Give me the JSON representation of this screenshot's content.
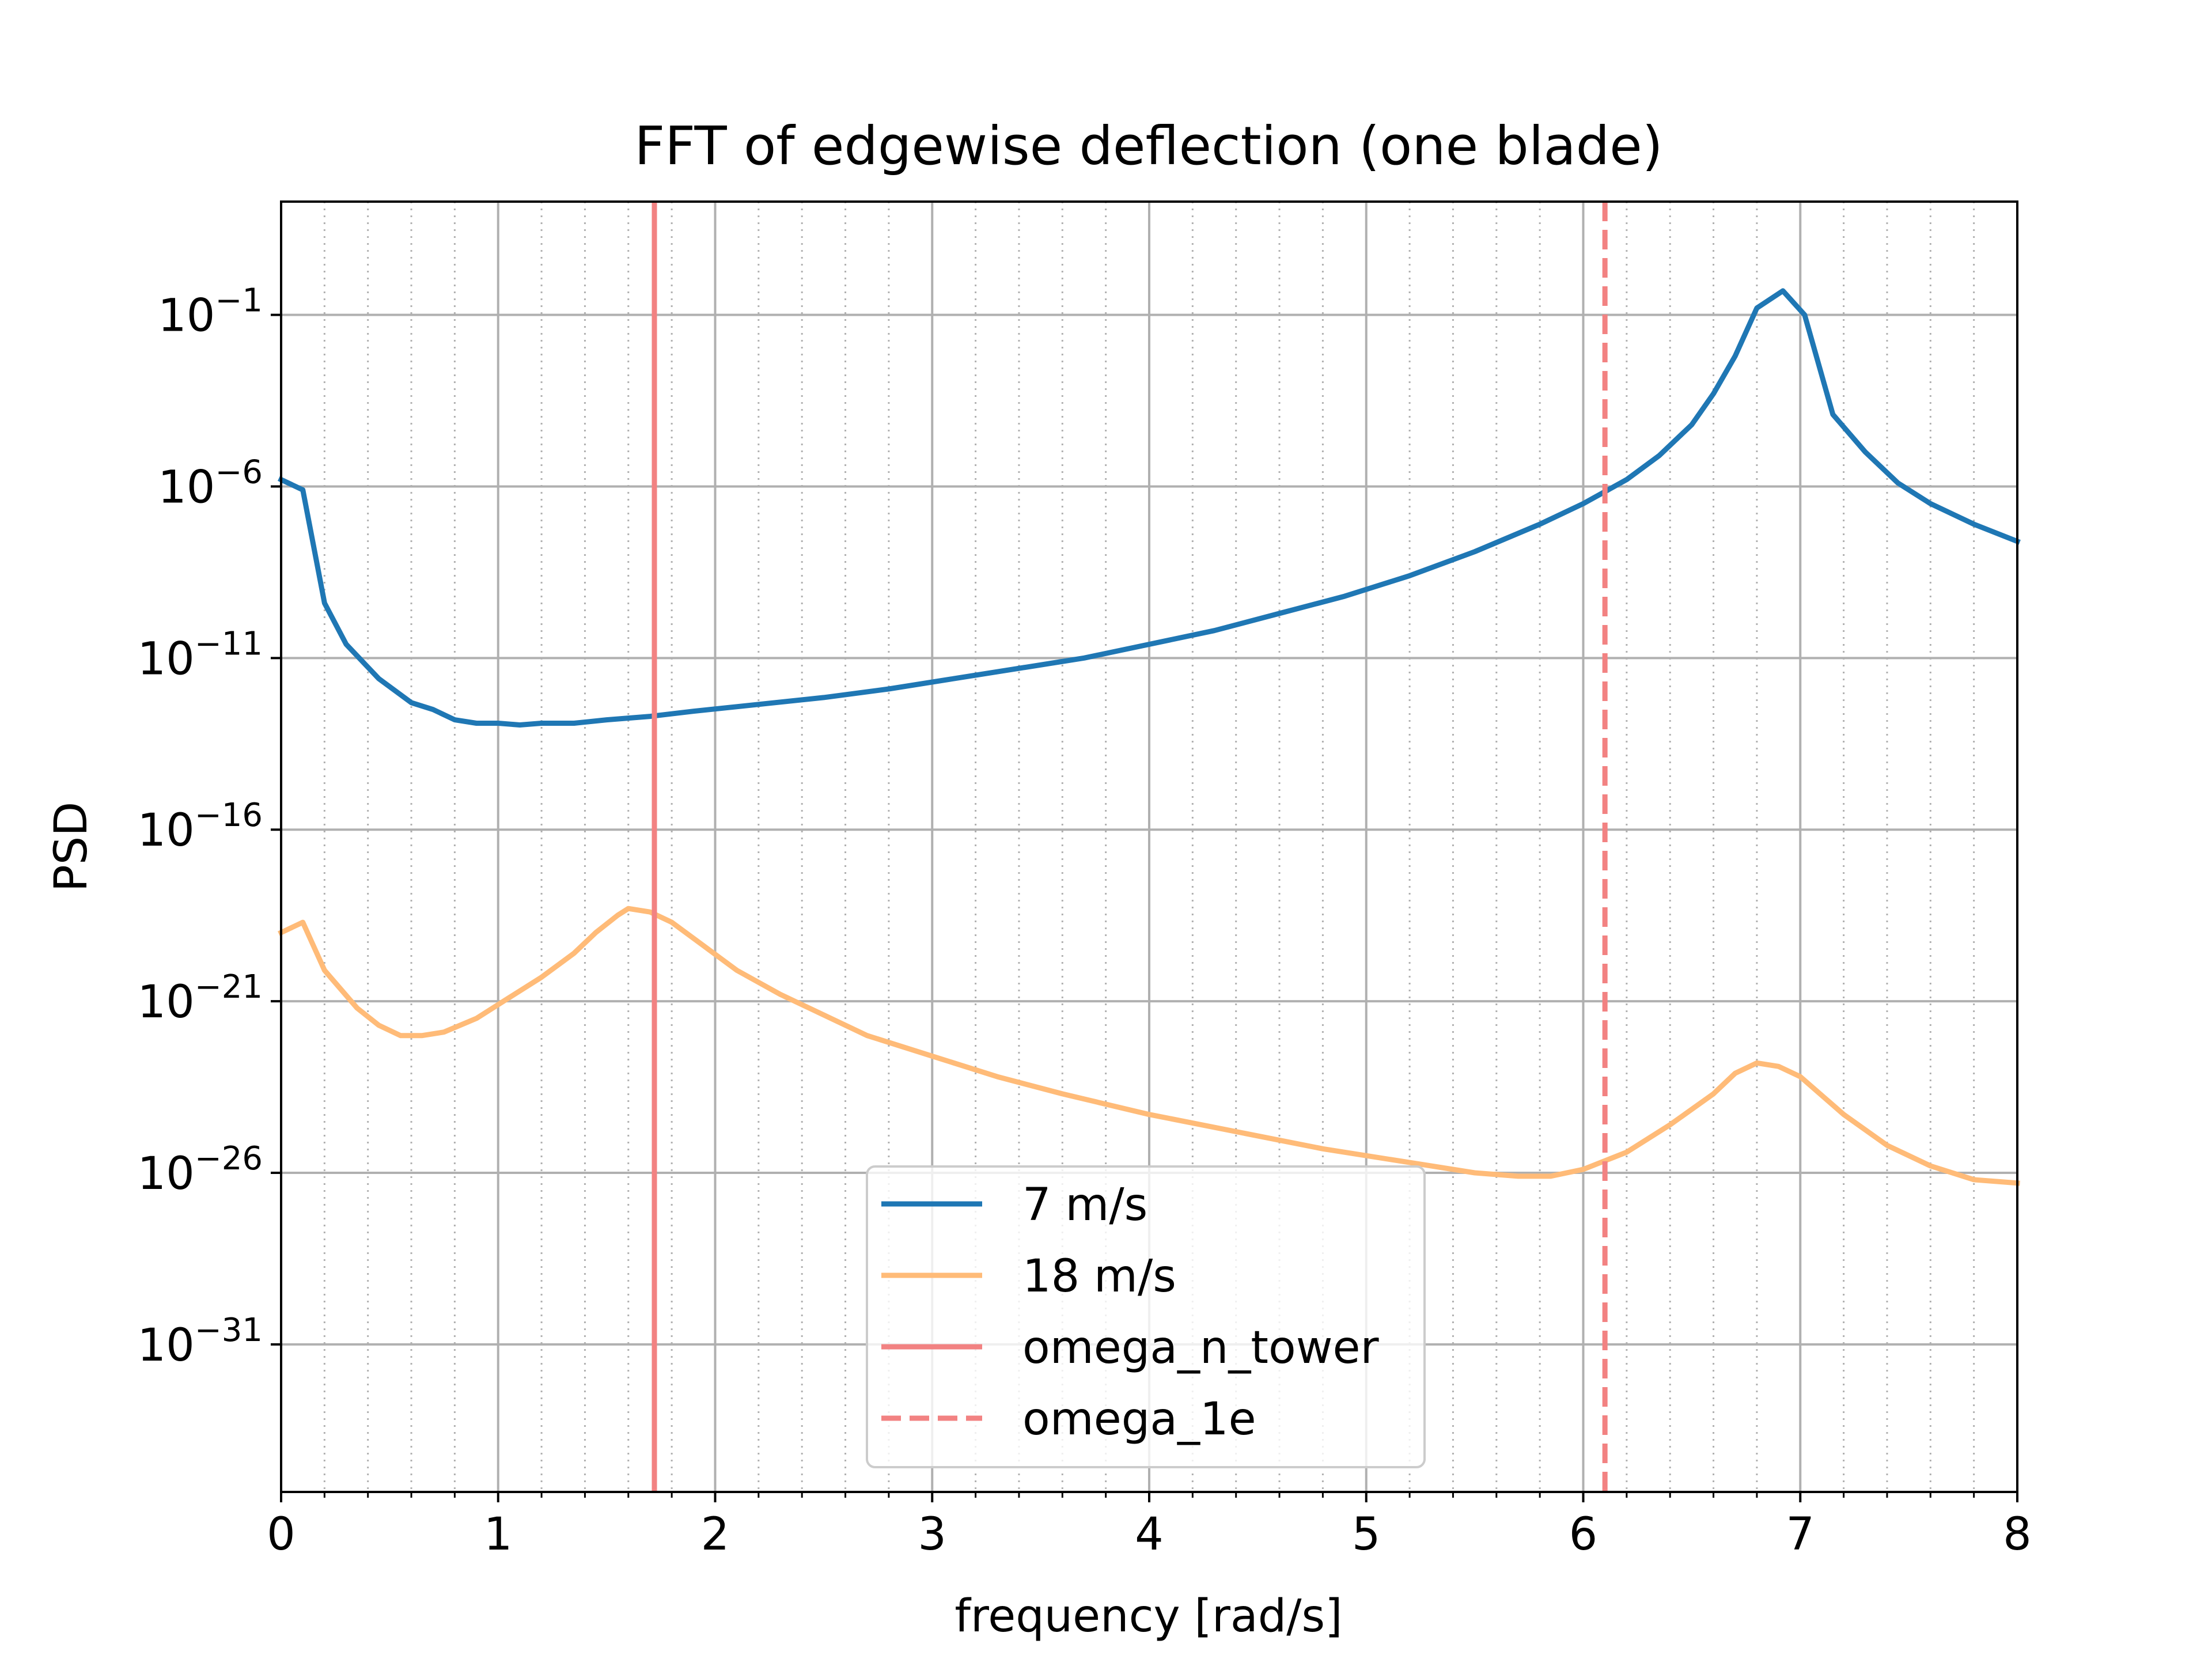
{
  "chart_data": {
    "type": "line",
    "title": "FFT of edgewise deflection (one blade)",
    "xlabel": "frequency [rad/s]",
    "ylabel": "PSD",
    "xlim": [
      0,
      8
    ],
    "ylim_log10": [
      -35.3,
      2.3
    ],
    "yscale": "log",
    "grid": "major solid, minor x dotted",
    "legend_position": "lower-center",
    "x_ticks": [
      0,
      1,
      2,
      3,
      4,
      5,
      6,
      7,
      8
    ],
    "x_tick_labels": [
      "0",
      "1",
      "2",
      "3",
      "4",
      "5",
      "6",
      "7",
      "8"
    ],
    "x_minor_step": 0.2,
    "y_ticks": [
      {
        "exp": -1,
        "base": "10",
        "sup": "−1"
      },
      {
        "exp": -6,
        "base": "10",
        "sup": "−6"
      },
      {
        "exp": -11,
        "base": "10",
        "sup": "−11"
      },
      {
        "exp": -16,
        "base": "10",
        "sup": "−16"
      },
      {
        "exp": -21,
        "base": "10",
        "sup": "−21"
      },
      {
        "exp": -26,
        "base": "10",
        "sup": "−26"
      },
      {
        "exp": -31,
        "base": "10",
        "sup": "−31"
      }
    ],
    "series": [
      {
        "name": "7 m/s",
        "color": "#1f77b4",
        "style": "solid",
        "points_log10": [
          [
            0.0,
            -5.8
          ],
          [
            0.1,
            -6.1
          ],
          [
            0.2,
            -9.4
          ],
          [
            0.3,
            -10.6
          ],
          [
            0.45,
            -11.6
          ],
          [
            0.6,
            -12.3
          ],
          [
            0.7,
            -12.5
          ],
          [
            0.8,
            -12.8
          ],
          [
            0.9,
            -12.9
          ],
          [
            1.0,
            -12.9
          ],
          [
            1.1,
            -12.95
          ],
          [
            1.2,
            -12.9
          ],
          [
            1.35,
            -12.9
          ],
          [
            1.5,
            -12.8
          ],
          [
            1.7,
            -12.7
          ],
          [
            1.9,
            -12.55
          ],
          [
            2.2,
            -12.35
          ],
          [
            2.5,
            -12.15
          ],
          [
            2.8,
            -11.9
          ],
          [
            3.1,
            -11.6
          ],
          [
            3.4,
            -11.3
          ],
          [
            3.7,
            -11.0
          ],
          [
            4.0,
            -10.6
          ],
          [
            4.3,
            -10.2
          ],
          [
            4.6,
            -9.7
          ],
          [
            4.9,
            -9.2
          ],
          [
            5.2,
            -8.6
          ],
          [
            5.5,
            -7.9
          ],
          [
            5.8,
            -7.1
          ],
          [
            6.0,
            -6.5
          ],
          [
            6.2,
            -5.8
          ],
          [
            6.35,
            -5.1
          ],
          [
            6.5,
            -4.2
          ],
          [
            6.6,
            -3.3
          ],
          [
            6.7,
            -2.2
          ],
          [
            6.8,
            -0.8
          ],
          [
            6.92,
            -0.3
          ],
          [
            7.02,
            -1.0
          ],
          [
            7.15,
            -3.9
          ],
          [
            7.3,
            -5.0
          ],
          [
            7.45,
            -5.9
          ],
          [
            7.6,
            -6.5
          ],
          [
            7.8,
            -7.1
          ],
          [
            8.0,
            -7.6
          ]
        ]
      },
      {
        "name": "18 m/s",
        "color": "#ffbb78",
        "style": "solid",
        "points_log10": [
          [
            0.0,
            -19.0
          ],
          [
            0.1,
            -18.7
          ],
          [
            0.2,
            -20.1
          ],
          [
            0.35,
            -21.2
          ],
          [
            0.45,
            -21.7
          ],
          [
            0.55,
            -22.0
          ],
          [
            0.65,
            -22.0
          ],
          [
            0.75,
            -21.9
          ],
          [
            0.9,
            -21.5
          ],
          [
            1.05,
            -20.9
          ],
          [
            1.2,
            -20.3
          ],
          [
            1.35,
            -19.6
          ],
          [
            1.45,
            -19.0
          ],
          [
            1.55,
            -18.5
          ],
          [
            1.6,
            -18.3
          ],
          [
            1.7,
            -18.4
          ],
          [
            1.8,
            -18.7
          ],
          [
            1.95,
            -19.4
          ],
          [
            2.1,
            -20.1
          ],
          [
            2.3,
            -20.8
          ],
          [
            2.5,
            -21.4
          ],
          [
            2.7,
            -22.0
          ],
          [
            3.0,
            -22.6
          ],
          [
            3.3,
            -23.2
          ],
          [
            3.6,
            -23.7
          ],
          [
            4.0,
            -24.3
          ],
          [
            4.4,
            -24.8
          ],
          [
            4.8,
            -25.3
          ],
          [
            5.2,
            -25.7
          ],
          [
            5.5,
            -26.0
          ],
          [
            5.7,
            -26.1
          ],
          [
            5.85,
            -26.1
          ],
          [
            6.0,
            -25.9
          ],
          [
            6.2,
            -25.4
          ],
          [
            6.4,
            -24.6
          ],
          [
            6.6,
            -23.7
          ],
          [
            6.7,
            -23.1
          ],
          [
            6.8,
            -22.8
          ],
          [
            6.9,
            -22.9
          ],
          [
            7.0,
            -23.2
          ],
          [
            7.2,
            -24.3
          ],
          [
            7.4,
            -25.2
          ],
          [
            7.6,
            -25.8
          ],
          [
            7.8,
            -26.2
          ],
          [
            8.0,
            -26.3
          ]
        ]
      }
    ],
    "vlines": [
      {
        "name": "omega_n_tower",
        "x": 1.72,
        "color": "#f28282",
        "style": "solid"
      },
      {
        "name": "omega_1e",
        "x": 6.1,
        "color": "#f28282",
        "style": "dashed"
      }
    ]
  }
}
